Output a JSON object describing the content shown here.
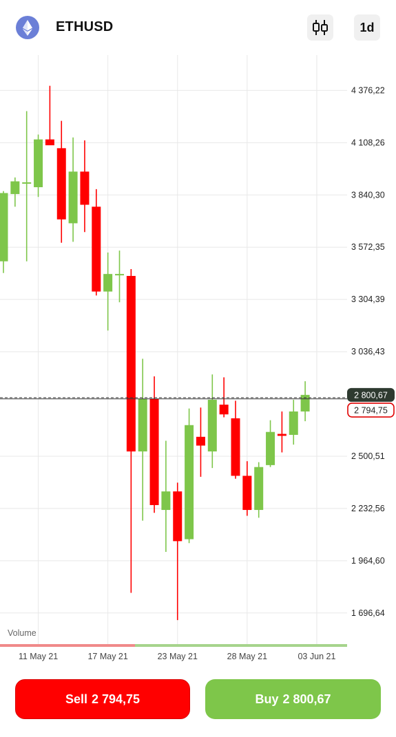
{
  "header": {
    "symbol": "ETHUSD",
    "logo_icon": "ethereum-icon",
    "chart_type_icon": "candlestick-icon",
    "timeframe": "1d"
  },
  "colors": {
    "bull": "#7ec64a",
    "bear": "#ff0000",
    "grid": "#e8e8e8",
    "ask_tag": "#2e3a30",
    "bid_tag_border": "#e00000"
  },
  "chart_data": {
    "type": "candlestick",
    "title": "",
    "xlabel": "",
    "ylabel": "",
    "ylim": [
      1650,
      4480
    ],
    "y_ticks": [
      "4 376,22",
      "4 108,26",
      "3 840,30",
      "3 572,35",
      "3 304,39",
      "3 036,43",
      "2 500,51",
      "2 232,56",
      "1 964,60",
      "1 696,64"
    ],
    "y_tick_values": [
      4376.22,
      4108.26,
      3840.3,
      3572.35,
      3304.39,
      3036.43,
      2500.51,
      2232.56,
      1964.6,
      1696.64
    ],
    "x_ticks": [
      "11 May 21",
      "17 May 21",
      "23 May 21",
      "28 May 21",
      "03 Jun 21"
    ],
    "x_tick_index": [
      3,
      9,
      15,
      21,
      27
    ],
    "volume_label": "Volume",
    "ask": {
      "value": 2800.67,
      "label": "2 800,67"
    },
    "bid": {
      "value": 2794.75,
      "label": "2 794,75"
    },
    "candles": [
      {
        "o": 3500,
        "h": 3860,
        "l": 3440,
        "c": 3850
      },
      {
        "o": 3845,
        "h": 3930,
        "l": 3780,
        "c": 3910
      },
      {
        "o": 3905,
        "h": 4270,
        "l": 3500,
        "c": 3905
      },
      {
        "o": 3880,
        "h": 4150,
        "l": 3830,
        "c": 4125
      },
      {
        "o": 4125,
        "h": 4400,
        "l": 4100,
        "c": 4095
      },
      {
        "o": 4080,
        "h": 4220,
        "l": 3595,
        "c": 3715
      },
      {
        "o": 3695,
        "h": 4135,
        "l": 3600,
        "c": 3960
      },
      {
        "o": 3960,
        "h": 4120,
        "l": 3650,
        "c": 3790
      },
      {
        "o": 3780,
        "h": 3870,
        "l": 3325,
        "c": 3345
      },
      {
        "o": 3345,
        "h": 3545,
        "l": 3145,
        "c": 3435
      },
      {
        "o": 3430,
        "h": 3555,
        "l": 3290,
        "c": 3435
      },
      {
        "o": 3425,
        "h": 3460,
        "l": 1800,
        "c": 2525
      },
      {
        "o": 2525,
        "h": 3000,
        "l": 2170,
        "c": 2795
      },
      {
        "o": 2795,
        "h": 2910,
        "l": 2210,
        "c": 2250
      },
      {
        "o": 2225,
        "h": 2580,
        "l": 2010,
        "c": 2320
      },
      {
        "o": 2320,
        "h": 2365,
        "l": 1660,
        "c": 2065
      },
      {
        "o": 2075,
        "h": 2745,
        "l": 2055,
        "c": 2660
      },
      {
        "o": 2600,
        "h": 2750,
        "l": 2395,
        "c": 2555
      },
      {
        "o": 2525,
        "h": 2920,
        "l": 2440,
        "c": 2790
      },
      {
        "o": 2765,
        "h": 2905,
        "l": 2700,
        "c": 2715
      },
      {
        "o": 2695,
        "h": 2785,
        "l": 2385,
        "c": 2400
      },
      {
        "o": 2400,
        "h": 2475,
        "l": 2195,
        "c": 2225
      },
      {
        "o": 2225,
        "h": 2470,
        "l": 2185,
        "c": 2445
      },
      {
        "o": 2455,
        "h": 2685,
        "l": 2445,
        "c": 2625
      },
      {
        "o": 2615,
        "h": 2730,
        "l": 2520,
        "c": 2605
      },
      {
        "o": 2610,
        "h": 2790,
        "l": 2560,
        "c": 2730
      },
      {
        "o": 2730,
        "h": 2885,
        "l": 2680,
        "c": 2815
      }
    ]
  },
  "actions": {
    "sell_label": "Sell",
    "sell_price": "2 794,75",
    "buy_label": "Buy",
    "buy_price": "2 800,67"
  }
}
